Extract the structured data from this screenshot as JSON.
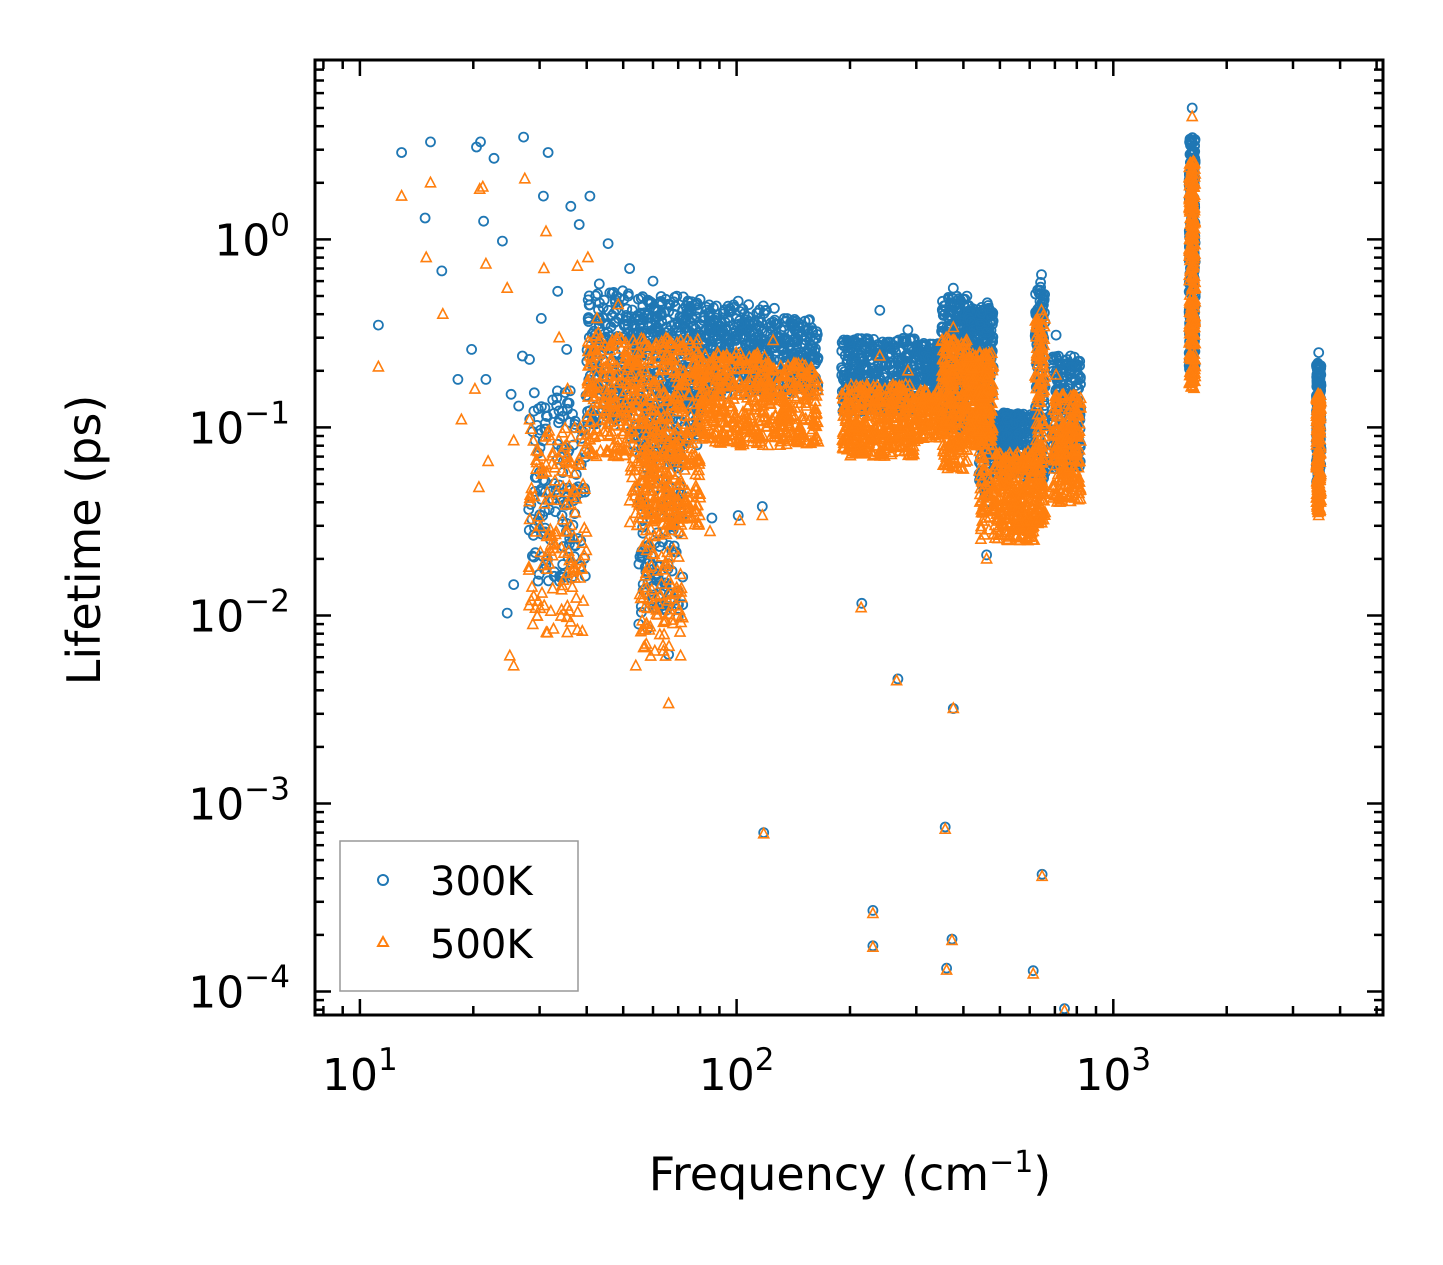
{
  "chart_data": {
    "type": "scatter",
    "title": "",
    "xlabel": "Frequency (cm",
    "xlabel_sup": "−1",
    "xlabel_close": ")",
    "ylabel": "Lifetime (ps)",
    "xscale": "log",
    "yscale": "log",
    "xlim": [
      7.6,
      5200
    ],
    "ylim": [
      7.5e-05,
      9.0
    ],
    "x_ticks": [
      {
        "value": 10,
        "base": "10",
        "exp": "1"
      },
      {
        "value": 100,
        "base": "10",
        "exp": "2"
      },
      {
        "value": 1000,
        "base": "10",
        "exp": "3"
      }
    ],
    "y_ticks": [
      {
        "value": 1,
        "base": "10",
        "exp": "0"
      },
      {
        "value": 0.1,
        "base": "10",
        "exp": "−1"
      },
      {
        "value": 0.01,
        "base": "10",
        "exp": "−2"
      },
      {
        "value": 0.001,
        "base": "10",
        "exp": "−3"
      },
      {
        "value": 0.0001,
        "base": "10",
        "exp": "−4"
      }
    ],
    "legend_position": "lower-left",
    "colors": {
      "s300": "#1f77b4",
      "s500": "#ff7f0e"
    },
    "series": [
      {
        "name": "300K",
        "marker": "circle",
        "color": "#1f77b4",
        "points": [
          [
            11.2,
            0.35
          ],
          [
            12.9,
            2.9
          ],
          [
            14.9,
            1.3
          ],
          [
            15.4,
            3.3
          ],
          [
            16.5,
            0.68
          ],
          [
            18.2,
            0.18
          ],
          [
            19.8,
            0.26
          ],
          [
            20.4,
            3.1
          ],
          [
            20.9,
            3.3
          ],
          [
            21.3,
            1.25
          ],
          [
            21.6,
            0.18
          ],
          [
            22.7,
            2.7
          ],
          [
            23.9,
            0.98
          ],
          [
            25.2,
            0.15
          ],
          [
            26.4,
            0.13
          ],
          [
            27.2,
            3.5
          ],
          [
            27.0,
            0.24
          ],
          [
            28.2,
            0.23
          ],
          [
            29.2,
            0.085
          ],
          [
            30.3,
            0.38
          ],
          [
            30.7,
            1.7
          ],
          [
            31.6,
            2.9
          ],
          [
            33.5,
            0.53
          ],
          [
            35.4,
            0.26
          ],
          [
            36.3,
            1.5
          ],
          [
            38.2,
            1.2
          ],
          [
            40.8,
            1.7
          ],
          [
            43.2,
            0.58
          ],
          [
            45.6,
            0.95
          ],
          [
            48.0,
            0.5
          ],
          [
            52.0,
            0.7
          ],
          [
            60.0,
            0.6
          ],
          [
            80.0,
            0.48
          ],
          [
            101.0,
            0.47
          ],
          [
            117.0,
            0.038
          ],
          [
            101.0,
            0.034
          ],
          [
            86.0,
            0.033
          ],
          [
            70.0,
            0.0098
          ],
          [
            66.0,
            0.0062
          ],
          [
            55.0,
            0.009
          ],
          [
            58.0,
            0.0085
          ],
          [
            24.6,
            0.0103
          ],
          [
            25.6,
            0.0146
          ],
          [
            126.0,
            0.43
          ],
          [
            160.0,
            0.24
          ],
          [
            215.0,
            0.0116
          ],
          [
            268.0,
            0.0046
          ],
          [
            376.0,
            0.0032
          ],
          [
            461.0,
            0.021
          ],
          [
            118.0,
            0.0007
          ],
          [
            358.0,
            0.00075
          ],
          [
            647.0,
            0.00042
          ],
          [
            230.0,
            0.00027
          ],
          [
            230.0,
            0.000175
          ],
          [
            373.0,
            0.00019
          ],
          [
            361.0,
            0.000133
          ],
          [
            613.0,
            0.000129
          ],
          [
            742.0,
            8.1e-05
          ],
          [
            240.0,
            0.42
          ],
          [
            285.0,
            0.33
          ],
          [
            376.0,
            0.55
          ],
          [
            463.0,
            0.46
          ],
          [
            645.0,
            0.65
          ],
          [
            705.0,
            0.31
          ],
          [
            770.0,
            0.24
          ],
          [
            1620.0,
            5.0
          ],
          [
            3510.0,
            0.25
          ],
          [
            3510.0,
            0.038
          ]
        ]
      },
      {
        "name": "500K",
        "marker": "triangle",
        "color": "#ff7f0e",
        "points": [
          [
            11.2,
            0.21
          ],
          [
            12.9,
            1.7
          ],
          [
            15.0,
            0.8
          ],
          [
            15.4,
            2.0
          ],
          [
            16.6,
            0.4
          ],
          [
            18.6,
            0.11
          ],
          [
            20.2,
            0.16
          ],
          [
            20.8,
            1.85
          ],
          [
            21.2,
            1.9
          ],
          [
            21.6,
            0.74
          ],
          [
            21.9,
            0.066
          ],
          [
            24.6,
            0.55
          ],
          [
            25.6,
            0.085
          ],
          [
            27.4,
            2.1
          ],
          [
            28.2,
            0.11
          ],
          [
            29.4,
            0.06
          ],
          [
            30.8,
            0.7
          ],
          [
            31.2,
            1.1
          ],
          [
            33.8,
            0.3
          ],
          [
            35.6,
            0.16
          ],
          [
            37.8,
            0.72
          ],
          [
            40.3,
            0.8
          ],
          [
            42.6,
            0.38
          ],
          [
            48.5,
            0.45
          ],
          [
            25.0,
            0.0061
          ],
          [
            25.6,
            0.0054
          ],
          [
            54.0,
            0.0054
          ],
          [
            66.0,
            0.0034
          ],
          [
            71.0,
            0.0061
          ],
          [
            85.0,
            0.028
          ],
          [
            102.0,
            0.032
          ],
          [
            117.0,
            0.034
          ],
          [
            125.0,
            0.29
          ],
          [
            160.0,
            0.15
          ],
          [
            20.7,
            0.048
          ],
          [
            214.0,
            0.011
          ],
          [
            266.0,
            0.0045
          ],
          [
            376.0,
            0.0032
          ],
          [
            461.0,
            0.02
          ],
          [
            118.0,
            0.00069
          ],
          [
            358.0,
            0.00073
          ],
          [
            647.0,
            0.00041
          ],
          [
            230.0,
            0.00026
          ],
          [
            230.0,
            0.000172
          ],
          [
            373.0,
            0.000187
          ],
          [
            361.0,
            0.00013
          ],
          [
            613.0,
            0.000124
          ],
          [
            742.0,
            7.9e-05
          ],
          [
            240.0,
            0.24
          ],
          [
            285.0,
            0.2
          ],
          [
            376.0,
            0.34
          ],
          [
            463.0,
            0.23
          ],
          [
            645.0,
            0.42
          ],
          [
            705.0,
            0.19
          ],
          [
            770.0,
            0.13
          ],
          [
            1620.0,
            4.5
          ],
          [
            3510.0,
            0.15
          ],
          [
            3510.0,
            0.034
          ]
        ]
      }
    ],
    "clusters": [
      {
        "x": [
          28,
          40
        ],
        "y300": [
          0.015,
          0.16
        ],
        "y500": [
          0.008,
          0.1
        ],
        "n": 150
      },
      {
        "x": [
          40,
          52
        ],
        "y300": [
          0.1,
          0.55
        ],
        "y500": [
          0.07,
          0.32
        ],
        "n": 180
      },
      {
        "x": [
          52,
          80
        ],
        "y300": [
          0.08,
          0.5
        ],
        "y500": [
          0.03,
          0.3
        ],
        "n": 420
      },
      {
        "x": [
          55,
          72
        ],
        "y300": [
          0.01,
          0.1
        ],
        "y500": [
          0.006,
          0.08
        ],
        "n": 160
      },
      {
        "x": [
          80,
          120
        ],
        "y300": [
          0.15,
          0.45
        ],
        "y500": [
          0.08,
          0.25
        ],
        "n": 300
      },
      {
        "x": [
          120,
          165
        ],
        "y300": [
          0.15,
          0.38
        ],
        "y500": [
          0.08,
          0.22
        ],
        "n": 220
      },
      {
        "x": [
          190,
          300
        ],
        "y300": [
          0.12,
          0.3
        ],
        "y500": [
          0.07,
          0.17
        ],
        "n": 380
      },
      {
        "x": [
          300,
          350
        ],
        "y300": [
          0.15,
          0.28
        ],
        "y500": [
          0.085,
          0.16
        ],
        "n": 120
      },
      {
        "x": [
          350,
          410
        ],
        "y300": [
          0.1,
          0.5
        ],
        "y500": [
          0.06,
          0.3
        ],
        "n": 250
      },
      {
        "x": [
          410,
          480
        ],
        "y300": [
          0.15,
          0.45
        ],
        "y500": [
          0.08,
          0.25
        ],
        "n": 250
      },
      {
        "x": [
          440,
          470
        ],
        "y300": [
          0.04,
          0.2
        ],
        "y500": [
          0.025,
          0.15
        ],
        "n": 80
      },
      {
        "x": [
          480,
          620
        ],
        "y300": [
          0.055,
          0.12
        ],
        "y500": [
          0.025,
          0.075
        ],
        "n": 300
      },
      {
        "x": [
          620,
          660
        ],
        "y300": [
          0.05,
          0.6
        ],
        "y500": [
          0.03,
          0.4
        ],
        "n": 150
      },
      {
        "x": [
          690,
          820
        ],
        "y300": [
          0.06,
          0.24
        ],
        "y500": [
          0.04,
          0.15
        ],
        "n": 220
      },
      {
        "x": [
          1590,
          1650
        ],
        "y300": [
          0.2,
          3.5
        ],
        "y500": [
          0.16,
          2.6
        ],
        "n": 260
      },
      {
        "x": [
          3460,
          3560
        ],
        "y300": [
          0.05,
          0.22
        ],
        "y500": [
          0.035,
          0.15
        ],
        "n": 170
      }
    ],
    "legend": [
      {
        "label": "300K",
        "marker": "circle"
      },
      {
        "label": "500K",
        "marker": "triangle"
      }
    ]
  }
}
